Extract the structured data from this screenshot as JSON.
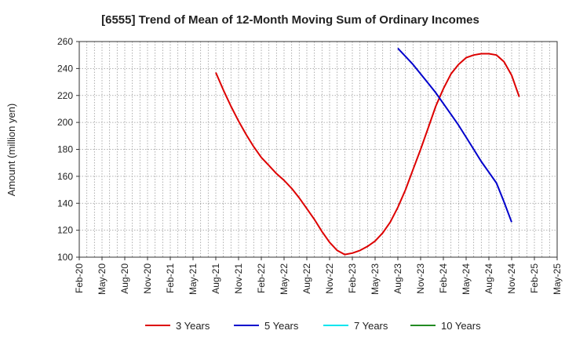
{
  "chart_data": {
    "type": "line",
    "title": "[6555]  Trend of Mean of 12-Month Moving Sum of Ordinary Incomes",
    "xlabel": "",
    "ylabel": "Amount (million yen)",
    "ylim": [
      100,
      260
    ],
    "yticks": [
      100,
      120,
      140,
      160,
      180,
      200,
      220,
      240,
      260
    ],
    "grid": true,
    "legend_position": "bottom",
    "x_categories": [
      "Feb-20",
      "May-20",
      "Aug-20",
      "Nov-20",
      "Feb-21",
      "May-21",
      "Aug-21",
      "Nov-21",
      "Feb-22",
      "May-22",
      "Aug-22",
      "Nov-22",
      "Feb-23",
      "May-23",
      "Aug-23",
      "Nov-23",
      "Feb-24",
      "May-24",
      "Aug-24",
      "Nov-24",
      "Feb-25",
      "May-25"
    ],
    "series": [
      {
        "name": "3 Years",
        "color": "#dd0000",
        "start_index": 18,
        "values": [
          237,
          224,
          212,
          201,
          191,
          182,
          174,
          168,
          162,
          157,
          151,
          144,
          136,
          128,
          119,
          111,
          105,
          102,
          103,
          105,
          108,
          112,
          118,
          126,
          137,
          150,
          165,
          180,
          196,
          212,
          225,
          236,
          243,
          248,
          250,
          251,
          251,
          250,
          245,
          235,
          219
        ]
      },
      {
        "name": "5 Years",
        "color": "#0000cc",
        "start_index": 42,
        "values": [
          255,
          249,
          243,
          236,
          229,
          222,
          214,
          206,
          198,
          189,
          180,
          171,
          163,
          155,
          141,
          126
        ]
      },
      {
        "name": "7 Years",
        "color": "#00e5ee",
        "start_index": null,
        "values": []
      },
      {
        "name": "10 Years",
        "color": "#228b22",
        "start_index": null,
        "values": []
      }
    ]
  }
}
